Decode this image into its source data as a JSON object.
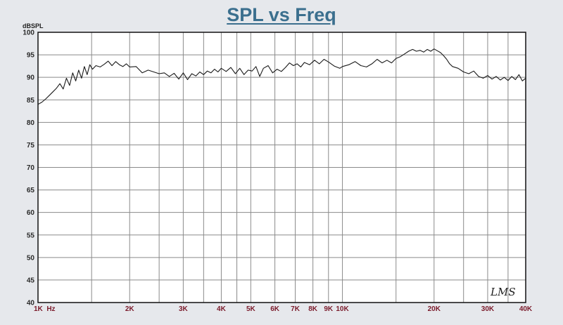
{
  "chart_data": {
    "type": "line",
    "title": "SPL vs Freq",
    "ylabel": "dBSPL",
    "xlabel": "",
    "x_scale": "log",
    "xlim": [
      1000,
      40000
    ],
    "ylim": [
      40,
      100
    ],
    "grid": true,
    "yticks": [
      40,
      45,
      50,
      55,
      60,
      65,
      70,
      75,
      80,
      85,
      90,
      95,
      100
    ],
    "xticks": [
      {
        "value": 1000,
        "label": "1K  Hz"
      },
      {
        "value": 2000,
        "label": "2K"
      },
      {
        "value": 3000,
        "label": "3K"
      },
      {
        "value": 4000,
        "label": "4K"
      },
      {
        "value": 5000,
        "label": "5K"
      },
      {
        "value": 6000,
        "label": "6K"
      },
      {
        "value": 7000,
        "label": "7K"
      },
      {
        "value": 8000,
        "label": "8K"
      },
      {
        "value": 9000,
        "label": "9K"
      },
      {
        "value": 10000,
        "label": "10K"
      },
      {
        "value": 20000,
        "label": "20K"
      },
      {
        "value": 30000,
        "label": "30K"
      },
      {
        "value": 40000,
        "label": "40K"
      }
    ],
    "minor_x": [
      1500,
      1500,
      2500,
      3500,
      4500,
      15000,
      25000,
      35000
    ],
    "watermark": "LMS",
    "line_color": "#1a1a1a",
    "series": [
      {
        "x": [
          1000,
          1030,
          1060,
          1090,
          1120,
          1150,
          1180,
          1210,
          1240,
          1270,
          1300,
          1330,
          1360,
          1390,
          1420,
          1450,
          1480,
          1510,
          1550,
          1600,
          1650,
          1700,
          1750,
          1800,
          1850,
          1900,
          1950,
          2000,
          2100,
          2200,
          2300,
          2400,
          2500,
          2600,
          2700,
          2800,
          2900,
          3000,
          3100,
          3200,
          3300,
          3400,
          3500,
          3600,
          3700,
          3800,
          3900,
          4000,
          4150,
          4300,
          4450,
          4600,
          4750,
          4900,
          5050,
          5200,
          5350,
          5500,
          5700,
          5900,
          6100,
          6300,
          6500,
          6700,
          6900,
          7100,
          7300,
          7500,
          7800,
          8100,
          8400,
          8700,
          9000,
          9400,
          9800,
          10000,
          10500,
          11000,
          11500,
          12000,
          12500,
          13000,
          13500,
          14000,
          14500,
          15000,
          15500,
          16000,
          16500,
          17000,
          17500,
          18000,
          18500,
          19000,
          19500,
          20000,
          20500,
          21000,
          21500,
          22000,
          22500,
          23000,
          24000,
          25000,
          26000,
          27000,
          28000,
          29000,
          30000,
          31000,
          32000,
          33000,
          34000,
          35000,
          36000,
          37000,
          38000,
          39000,
          40000
        ],
        "y": [
          84.0,
          84.5,
          85.2,
          86.0,
          86.8,
          87.6,
          88.6,
          87.4,
          89.8,
          88.2,
          91.0,
          89.2,
          91.6,
          89.8,
          92.4,
          90.6,
          92.8,
          91.8,
          92.6,
          92.3,
          92.9,
          93.6,
          92.6,
          93.5,
          92.8,
          92.4,
          93.0,
          92.3,
          92.4,
          91.0,
          91.6,
          91.2,
          90.8,
          91.0,
          90.2,
          90.9,
          89.6,
          91.0,
          89.5,
          90.8,
          90.3,
          91.2,
          90.6,
          91.4,
          91.0,
          91.8,
          91.2,
          92.0,
          91.3,
          92.2,
          90.8,
          92.0,
          90.6,
          91.6,
          91.4,
          92.4,
          90.2,
          92.0,
          92.6,
          91.0,
          91.8,
          91.3,
          92.2,
          93.2,
          92.6,
          93.0,
          92.3,
          93.3,
          92.8,
          93.8,
          93.0,
          94.0,
          93.4,
          92.5,
          92.0,
          92.4,
          92.8,
          93.5,
          92.6,
          92.3,
          93.0,
          94.0,
          93.2,
          93.8,
          93.2,
          94.2,
          94.6,
          95.2,
          95.8,
          96.2,
          95.8,
          96.0,
          95.6,
          96.2,
          95.8,
          96.3,
          95.9,
          95.5,
          94.8,
          94.0,
          93.0,
          92.4,
          92.0,
          91.2,
          90.8,
          91.4,
          90.2,
          89.8,
          90.4,
          89.6,
          90.2,
          89.4,
          90.0,
          89.3,
          90.2,
          89.5,
          90.6,
          89.2,
          89.8
        ]
      }
    ]
  }
}
